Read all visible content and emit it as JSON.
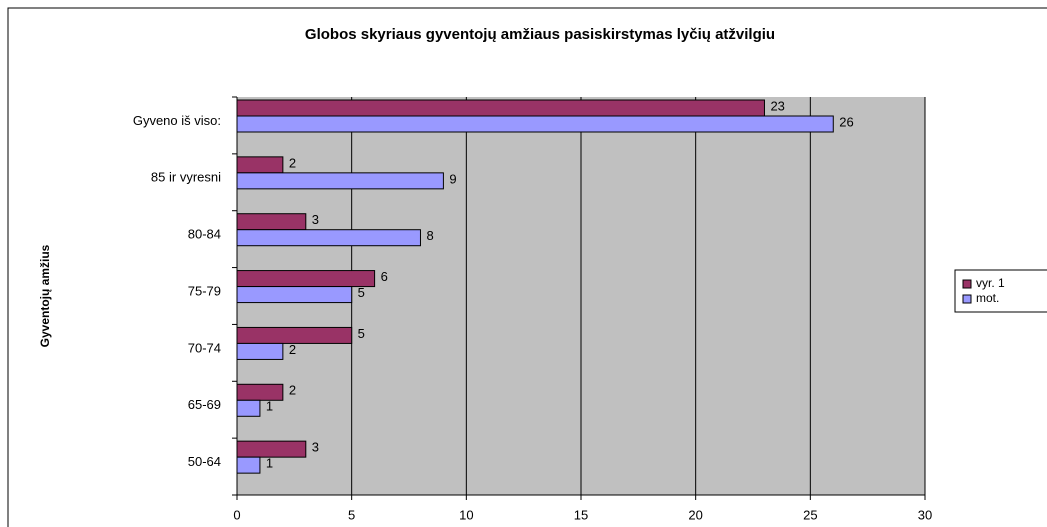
{
  "chart_data": {
    "type": "hbar",
    "title": "Globos skyriaus gyventojų amžiaus pasiskirstymas lyčių atžvilgiu",
    "ylabel": "Gyventojų amžius",
    "categories": [
      "Gyveno iš viso:",
      "85 ir vyresni",
      "80-84",
      "75-79",
      "70-74",
      "65-69",
      "50-64"
    ],
    "series": [
      {
        "name": "vyr. 1",
        "color": "#993366",
        "values": [
          23,
          2,
          3,
          6,
          5,
          2,
          3
        ]
      },
      {
        "name": "mot.",
        "color": "#9999ff",
        "values": [
          26,
          9,
          8,
          5,
          2,
          1,
          1
        ]
      }
    ],
    "xlim": [
      0,
      30
    ],
    "xticks": [
      0,
      5,
      10,
      15,
      20,
      25,
      30
    ],
    "grid": true,
    "legend": "right"
  }
}
